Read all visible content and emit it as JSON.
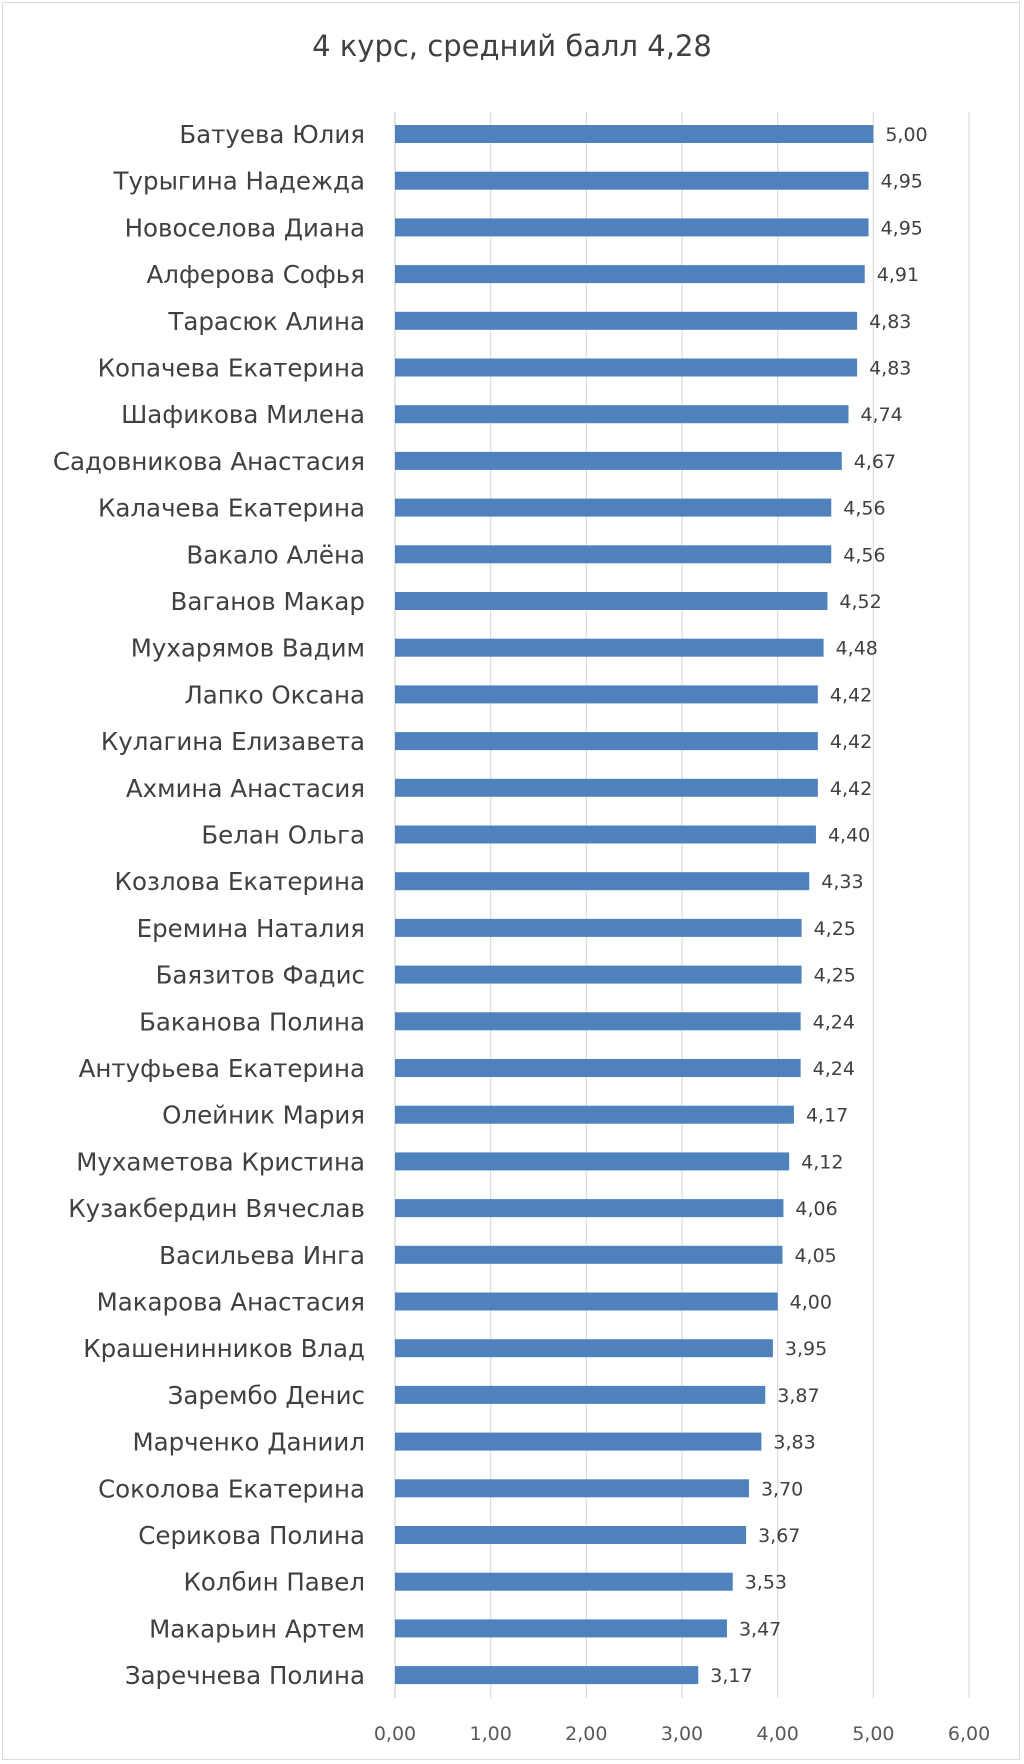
{
  "chart_data": {
    "type": "bar",
    "orientation": "horizontal",
    "title": "4 курс, средний балл 4,28",
    "xlabel": "",
    "ylabel": "",
    "xlim": [
      0,
      6
    ],
    "x_ticks": [
      "0,00",
      "1,00",
      "2,00",
      "3,00",
      "4,00",
      "5,00",
      "6,00"
    ],
    "grid": "vertical",
    "legend": "none",
    "bar_color": "#4f81bd",
    "categories": [
      "Батуева Юлия",
      "Турыгина Надежда",
      "Новоселова Диана",
      "Алферова Софья",
      "Тарасюк Алина",
      "Копачева Екатерина",
      "Шафикова Милена",
      "Садовникова Анастасия",
      "Калачева Екатерина",
      "Вакало Алёна",
      "Ваганов Макар",
      "Мухарямов Вадим",
      "Лапко Оксана",
      "Кулагина Елизавета",
      "Ахмина Анастасия",
      "Белан Ольга",
      "Козлова Екатерина",
      "Еремина Наталия",
      "Баязитов Фадис",
      "Баканова Полина",
      "Антуфьева Екатерина",
      "Олейник Мария",
      "Мухаметова Кристина",
      "Кузакбердин Вячеслав",
      "Васильева Инга",
      "Макарова Анастасия",
      "Крашенинников Влад",
      "Зарембо Денис",
      "Марченко Даниил",
      "Соколова Екатерина",
      "Серикова Полина",
      "Колбин Павел",
      "Макарьин Артем",
      "Заречнева Полина"
    ],
    "values": [
      5.0,
      4.95,
      4.95,
      4.91,
      4.83,
      4.83,
      4.74,
      4.67,
      4.56,
      4.56,
      4.52,
      4.48,
      4.42,
      4.42,
      4.42,
      4.4,
      4.33,
      4.25,
      4.25,
      4.24,
      4.24,
      4.17,
      4.12,
      4.06,
      4.05,
      4.0,
      3.95,
      3.87,
      3.83,
      3.7,
      3.67,
      3.53,
      3.47,
      3.17
    ],
    "value_labels": [
      "5,00",
      "4,95",
      "4,95",
      "4,91",
      "4,83",
      "4,83",
      "4,74",
      "4,67",
      "4,56",
      "4,56",
      "4,52",
      "4,48",
      "4,42",
      "4,42",
      "4,42",
      "4,40",
      "4,33",
      "4,25",
      "4,25",
      "4,24",
      "4,24",
      "4,17",
      "4,12",
      "4,06",
      "4,05",
      "4,00",
      "3,95",
      "3,87",
      "3,83",
      "3,70",
      "3,67",
      "3,53",
      "3,47",
      "3,17"
    ]
  }
}
